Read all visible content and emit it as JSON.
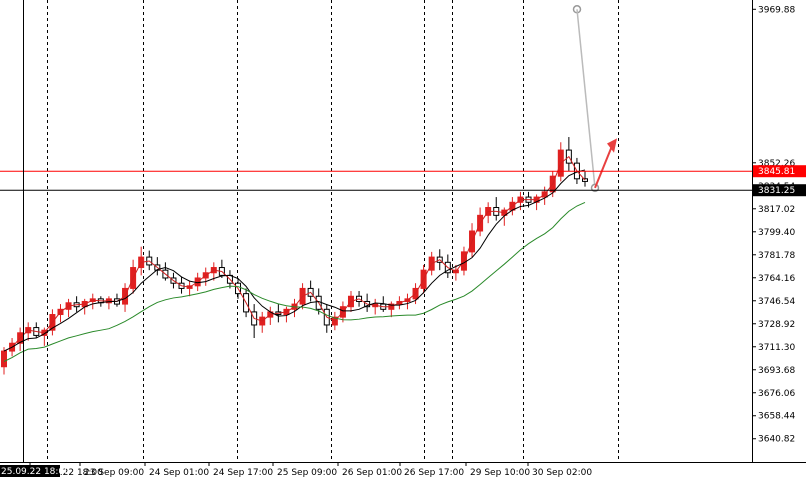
{
  "chart_data": {
    "type": "candlestick",
    "title": "",
    "xlabel": "",
    "ylabel": "",
    "ylim": [
      3623.0,
      3977.0
    ],
    "y_ticks": [
      "3969.88",
      "3852.26",
      "3834.54",
      "3817.02",
      "3799.40",
      "3781.78",
      "3764.16",
      "3746.54",
      "3728.92",
      "3711.30",
      "3693.68",
      "3676.06",
      "3658.44",
      "3640.82"
    ],
    "x_ticks": [
      "25.09.22 18:00",
      "23 Sep 09:00",
      "24 Sep 01:00",
      "24 Sep 17:00",
      "25 Sep 09:00",
      "26 Sep 01:00",
      "26 Sep 17:00",
      "29 Sep 10:00",
      "30 Sep 02:00"
    ],
    "current_price_label": "3845.81",
    "crosshair_price_label": "3831.25",
    "crosshair_time_label": "25.09.22 18:00",
    "colors": {
      "bull": "#e02020",
      "bear": "#000000",
      "ma_fast": "#d02020",
      "ma_mid": "#000000",
      "ma_slow": "#2a8a2a",
      "price_line": "#ff0000",
      "crosshair": "#000000",
      "projection": "#e84040"
    },
    "candles": [
      [
        3696,
        3711,
        3690,
        3708
      ],
      [
        3708,
        3718,
        3704,
        3714
      ],
      [
        3714,
        3726,
        3708,
        3722
      ],
      [
        3722,
        3730,
        3716,
        3726
      ],
      [
        3726,
        3730,
        3718,
        3720
      ],
      [
        3720,
        3726,
        3712,
        3724
      ],
      [
        3724,
        3740,
        3720,
        3736
      ],
      [
        3736,
        3744,
        3730,
        3740
      ],
      [
        3740,
        3748,
        3734,
        3745
      ],
      [
        3745,
        3750,
        3738,
        3742
      ],
      [
        3742,
        3748,
        3736,
        3746
      ],
      [
        3746,
        3752,
        3740,
        3748
      ],
      [
        3748,
        3750,
        3742,
        3745
      ],
      [
        3745,
        3750,
        3740,
        3748
      ],
      [
        3748,
        3752,
        3742,
        3744
      ],
      [
        3744,
        3760,
        3738,
        3756
      ],
      [
        3756,
        3778,
        3752,
        3772
      ],
      [
        3772,
        3788,
        3766,
        3780
      ],
      [
        3780,
        3785,
        3770,
        3774
      ],
      [
        3774,
        3780,
        3766,
        3770
      ],
      [
        3770,
        3776,
        3762,
        3764
      ],
      [
        3764,
        3768,
        3756,
        3760
      ],
      [
        3760,
        3765,
        3752,
        3756
      ],
      [
        3756,
        3762,
        3750,
        3758
      ],
      [
        3758,
        3768,
        3754,
        3764
      ],
      [
        3764,
        3772,
        3758,
        3768
      ],
      [
        3768,
        3776,
        3762,
        3772
      ],
      [
        3772,
        3778,
        3764,
        3766
      ],
      [
        3766,
        3770,
        3756,
        3760
      ],
      [
        3760,
        3764,
        3748,
        3752
      ],
      [
        3752,
        3756,
        3734,
        3738
      ],
      [
        3738,
        3744,
        3718,
        3728
      ],
      [
        3728,
        3738,
        3722,
        3734
      ],
      [
        3734,
        3742,
        3728,
        3738
      ],
      [
        3738,
        3744,
        3730,
        3736
      ],
      [
        3736,
        3742,
        3730,
        3740
      ],
      [
        3740,
        3748,
        3734,
        3744
      ],
      [
        3744,
        3760,
        3740,
        3756
      ],
      [
        3756,
        3762,
        3746,
        3750
      ],
      [
        3750,
        3756,
        3736,
        3740
      ],
      [
        3740,
        3744,
        3722,
        3728
      ],
      [
        3728,
        3738,
        3724,
        3734
      ],
      [
        3734,
        3746,
        3730,
        3742
      ],
      [
        3742,
        3754,
        3738,
        3750
      ],
      [
        3750,
        3754,
        3742,
        3746
      ],
      [
        3746,
        3752,
        3738,
        3742
      ],
      [
        3742,
        3748,
        3736,
        3744
      ],
      [
        3744,
        3750,
        3738,
        3740
      ],
      [
        3740,
        3746,
        3734,
        3744
      ],
      [
        3744,
        3750,
        3740,
        3746
      ],
      [
        3746,
        3752,
        3740,
        3748
      ],
      [
        3748,
        3760,
        3744,
        3756
      ],
      [
        3756,
        3774,
        3752,
        3770
      ],
      [
        3770,
        3784,
        3766,
        3780
      ],
      [
        3780,
        3786,
        3770,
        3776
      ],
      [
        3776,
        3782,
        3764,
        3768
      ],
      [
        3768,
        3774,
        3762,
        3770
      ],
      [
        3770,
        3788,
        3766,
        3784
      ],
      [
        3784,
        3806,
        3780,
        3800
      ],
      [
        3800,
        3818,
        3796,
        3812
      ],
      [
        3812,
        3822,
        3806,
        3818
      ],
      [
        3818,
        3826,
        3808,
        3812
      ],
      [
        3812,
        3818,
        3804,
        3816
      ],
      [
        3816,
        3826,
        3812,
        3822
      ],
      [
        3822,
        3830,
        3816,
        3826
      ],
      [
        3826,
        3830,
        3818,
        3822
      ],
      [
        3822,
        3828,
        3816,
        3826
      ],
      [
        3826,
        3834,
        3820,
        3830
      ],
      [
        3830,
        3846,
        3826,
        3842
      ],
      [
        3842,
        3868,
        3838,
        3862
      ],
      [
        3862,
        3872,
        3846,
        3852
      ],
      [
        3852,
        3856,
        3836,
        3840
      ],
      [
        3840,
        3846,
        3834,
        3838
      ]
    ],
    "projection_label_points": [
      {
        "kind": "peak",
        "price": 3969.88
      },
      {
        "kind": "trough",
        "price": 3833.0
      }
    ],
    "grid": false,
    "legend": "none"
  }
}
